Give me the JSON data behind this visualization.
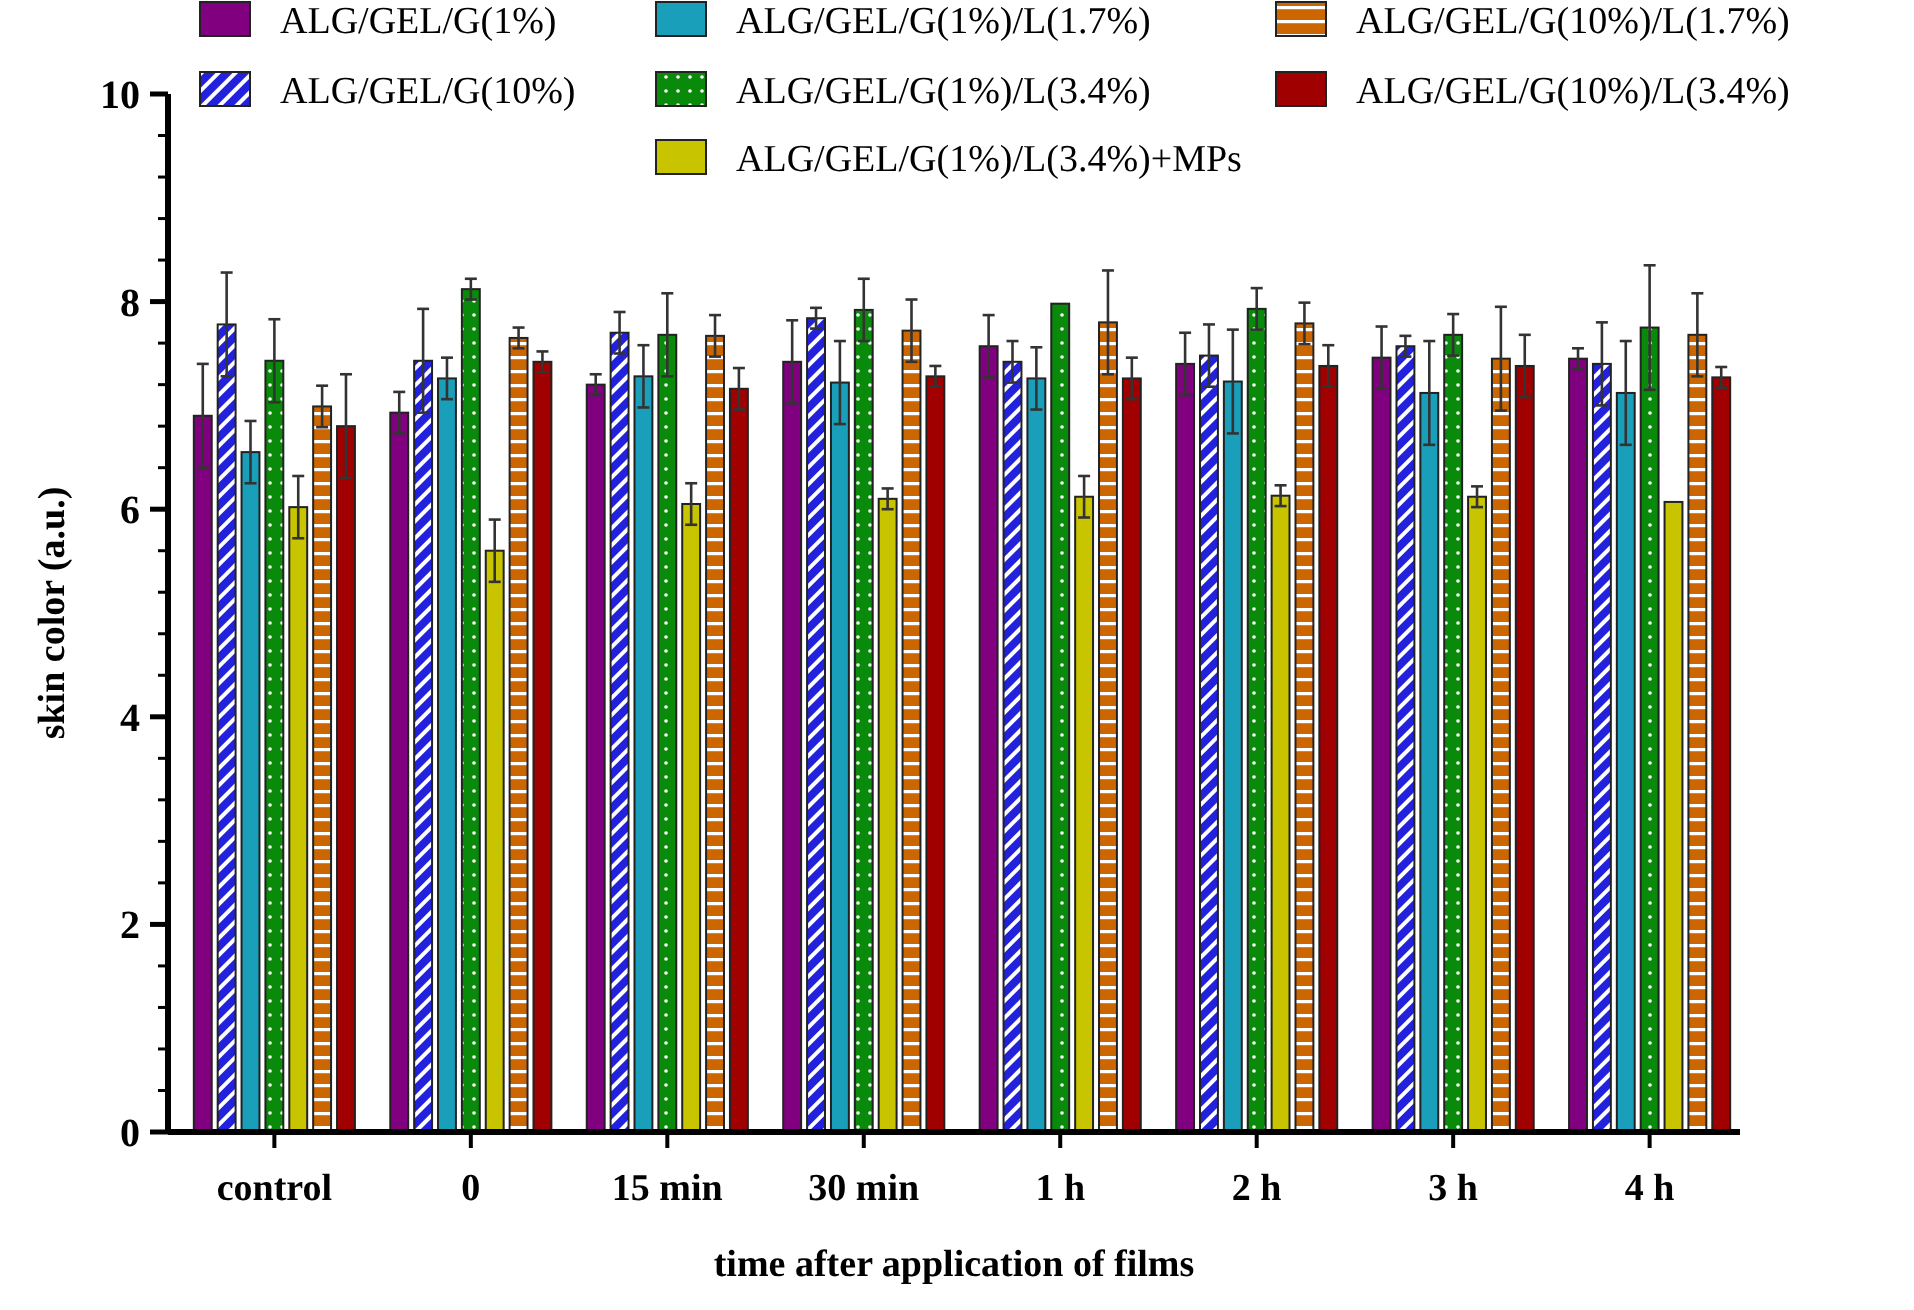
{
  "chart_data": {
    "type": "bar",
    "xlabel": "time after application of films",
    "ylabel": "skin color (a.u.)",
    "categories": [
      "control",
      "0",
      "15 min",
      "30 min",
      "1 h",
      "2 h",
      "3 h",
      "4 h"
    ],
    "ylim": [
      0,
      10
    ],
    "yticks": [
      0,
      {
        "value": 0.4,
        "label": null
      },
      {
        "value": 0.8,
        "label": null
      },
      {
        "value": 1.2,
        "label": null
      },
      {
        "value": 1.6,
        "label": null
      },
      2,
      {
        "value": 2.4,
        "label": null
      },
      {
        "value": 2.8,
        "label": null
      },
      {
        "value": 3.2,
        "label": null
      },
      {
        "value": 3.6,
        "label": null
      },
      4,
      {
        "value": 4.4,
        "label": null
      },
      {
        "value": 4.8,
        "label": null
      },
      {
        "value": 5.2,
        "label": null
      },
      {
        "value": 5.6,
        "label": null
      },
      6,
      {
        "value": 6.4,
        "label": null
      },
      {
        "value": 6.8,
        "label": null
      },
      {
        "value": 7.2,
        "label": null
      },
      {
        "value": 7.6,
        "label": null
      },
      8,
      {
        "value": 8.4,
        "label": null
      },
      {
        "value": 8.8,
        "label": null
      },
      {
        "value": 9.2,
        "label": null
      },
      {
        "value": 9.6,
        "label": null
      },
      10
    ],
    "legend": "top",
    "grid": false,
    "series": [
      {
        "name": "ALG/GEL/G(1%)",
        "color": "#800080",
        "values": [
          6.9,
          6.93,
          7.2,
          7.42,
          7.57,
          7.4,
          7.46,
          7.45
        ],
        "errors": [
          0.5,
          0.2,
          0.1,
          0.4,
          0.3,
          0.3,
          0.3,
          0.1
        ]
      },
      {
        "name": "ALG/GEL/G(10%)",
        "color": "#2222dd",
        "values": [
          7.78,
          7.43,
          7.7,
          7.84,
          7.42,
          7.48,
          7.57,
          7.4
        ],
        "errors": [
          0.5,
          0.5,
          0.2,
          0.1,
          0.2,
          0.3,
          0.1,
          0.4
        ]
      },
      {
        "name": "ALG/GEL/G(1%)/L(1.7%)",
        "color": "#1a9fba",
        "values": [
          6.55,
          7.26,
          7.28,
          7.22,
          7.26,
          7.23,
          7.12,
          7.12
        ],
        "errors": [
          0.3,
          0.2,
          0.3,
          0.4,
          0.3,
          0.5,
          0.5,
          0.5
        ]
      },
      {
        "name": "ALG/GEL/G(1%)/L(3.4%)",
        "color": "#0a8a0a",
        "values": [
          7.43,
          8.12,
          7.68,
          7.92,
          7.98,
          7.93,
          7.68,
          7.75
        ],
        "errors": [
          0.4,
          0.1,
          0.4,
          0.3,
          null,
          0.2,
          0.2,
          0.6
        ]
      },
      {
        "name": "ALG/GEL/G(1%)/L(3.4%)+MPs",
        "color": "#c8c400",
        "values": [
          6.02,
          5.6,
          6.05,
          6.1,
          6.12,
          6.13,
          6.12,
          6.07
        ],
        "errors": [
          0.3,
          0.3,
          0.2,
          0.1,
          0.2,
          0.1,
          0.1,
          null
        ]
      },
      {
        "name": "ALG/GEL/G(10%)/L(1.7%)",
        "color": "#cc6600",
        "values": [
          6.99,
          7.65,
          7.67,
          7.72,
          7.8,
          7.79,
          7.45,
          7.68
        ],
        "errors": [
          0.2,
          0.1,
          0.2,
          0.3,
          0.5,
          0.2,
          0.5,
          0.4
        ]
      },
      {
        "name": "ALG/GEL/G(10%)/L(3.4%)",
        "color": "#a00000",
        "values": [
          6.8,
          7.42,
          7.16,
          7.28,
          7.26,
          7.38,
          7.38,
          7.27
        ],
        "errors": [
          0.5,
          0.1,
          0.2,
          0.1,
          0.2,
          0.2,
          0.3,
          0.1
        ]
      }
    ]
  }
}
